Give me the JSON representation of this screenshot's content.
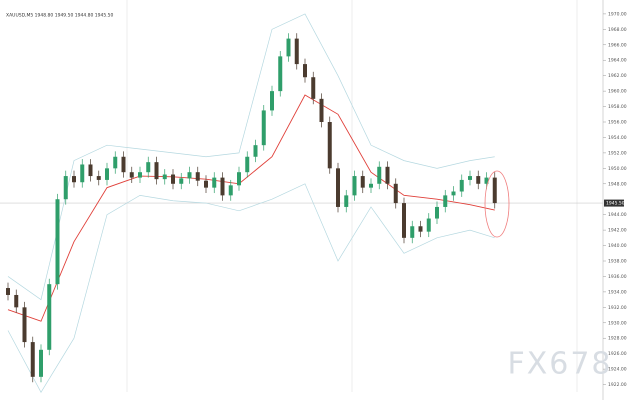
{
  "chart_data": {
    "type": "candlestick",
    "title": "XAUUSD,M5 1948.80 1949.50 1944.80 1945.50",
    "watermark": "FX678",
    "up_color": "#2f9e6a",
    "down_color": "#4b3b2f",
    "open": [
      1934.5,
      1933.6,
      1932.0,
      1927.5,
      1923.0,
      1926.5,
      1935.0,
      1946.0,
      1949.0,
      1948.2,
      1950.5,
      1949.0,
      1948.5,
      1950.0,
      1951.5,
      1949.5,
      1948.8,
      1949.5,
      1950.8,
      1948.6,
      1949.2,
      1948.0,
      1948.7,
      1949.5,
      1948.4,
      1947.5,
      1948.8,
      1946.5,
      1947.8,
      1949.5,
      1951.5,
      1953.0,
      1957.5,
      1960.0,
      1964.5,
      1966.8,
      1963.5,
      1961.8,
      1959.0,
      1956.0,
      1950.0,
      1945.0,
      1946.5,
      1949.0,
      1947.5,
      1948.0,
      1950.2,
      1948.0,
      1945.5,
      1941.0,
      1942.5,
      1941.8,
      1943.5,
      1945.0,
      1946.5,
      1947.0,
      1948.5,
      1949.0,
      1948.0,
      1948.8
    ],
    "high": [
      1935.2,
      1934.3,
      1932.7,
      1928.2,
      1927.2,
      1935.7,
      1946.7,
      1949.7,
      1949.7,
      1951.2,
      1951.2,
      1949.7,
      1950.7,
      1952.2,
      1952.2,
      1950.2,
      1950.2,
      1951.5,
      1951.5,
      1949.9,
      1949.9,
      1949.4,
      1950.2,
      1950.2,
      1949.1,
      1949.5,
      1949.5,
      1948.5,
      1950.2,
      1952.2,
      1953.7,
      1958.2,
      1960.7,
      1965.2,
      1967.5,
      1967.5,
      1964.2,
      1962.5,
      1959.7,
      1956.7,
      1950.7,
      1947.2,
      1949.7,
      1949.7,
      1948.7,
      1950.9,
      1950.9,
      1948.7,
      1946.2,
      1943.2,
      1943.2,
      1944.2,
      1945.7,
      1947.2,
      1947.7,
      1949.2,
      1949.7,
      1949.7,
      1949.5,
      1949.5
    ],
    "low": [
      1932.9,
      1931.3,
      1926.8,
      1922.3,
      1922.3,
      1925.8,
      1934.3,
      1945.3,
      1947.5,
      1947.5,
      1948.3,
      1947.8,
      1947.8,
      1949.3,
      1948.8,
      1948.1,
      1948.1,
      1948.8,
      1947.9,
      1947.9,
      1947.3,
      1947.3,
      1948.0,
      1947.7,
      1946.8,
      1946.8,
      1945.8,
      1945.8,
      1947.1,
      1948.8,
      1950.8,
      1952.3,
      1956.8,
      1959.3,
      1963.8,
      1962.8,
      1961.1,
      1958.3,
      1955.3,
      1949.3,
      1944.3,
      1944.3,
      1945.8,
      1946.8,
      1946.8,
      1947.3,
      1947.3,
      1944.8,
      1940.3,
      1940.3,
      1941.1,
      1941.1,
      1942.8,
      1944.3,
      1945.8,
      1946.3,
      1947.8,
      1947.3,
      1947.3,
      1944.8
    ],
    "close": [
      1933.6,
      1932.0,
      1927.5,
      1923.0,
      1926.5,
      1935.0,
      1946.0,
      1949.0,
      1948.2,
      1950.5,
      1949.0,
      1948.5,
      1950.0,
      1951.5,
      1949.5,
      1948.8,
      1949.5,
      1950.8,
      1948.6,
      1949.2,
      1948.0,
      1948.7,
      1949.5,
      1948.4,
      1947.5,
      1948.8,
      1946.5,
      1947.8,
      1949.5,
      1951.5,
      1953.0,
      1957.5,
      1960.0,
      1964.5,
      1966.8,
      1963.5,
      1961.8,
      1959.0,
      1956.0,
      1950.0,
      1945.0,
      1946.5,
      1949.0,
      1947.5,
      1948.0,
      1950.2,
      1948.0,
      1945.5,
      1941.0,
      1942.5,
      1941.8,
      1943.5,
      1945.0,
      1946.5,
      1947.0,
      1948.5,
      1949.0,
      1948.0,
      1948.8,
      1945.5
    ],
    "indicators": {
      "x": [
        0,
        4,
        8,
        12,
        16,
        20,
        24,
        28,
        32,
        36,
        40,
        44,
        48,
        52,
        56,
        59
      ],
      "series": [
        {
          "color": "#e0403a",
          "values": [
            1931.7,
            1930.2,
            1940.5,
            1947.5,
            1949.0,
            1948.9,
            1948.6,
            1948.0,
            1951.5,
            1959.5,
            1957.0,
            1949.5,
            1946.5,
            1946.0,
            1945.3,
            1944.6
          ]
        },
        {
          "color": "#b5d8e0",
          "values": [
            1936,
            1933,
            1951,
            1953,
            1952.5,
            1952,
            1951.5,
            1952,
            1968,
            1970,
            1962,
            1953,
            1951,
            1950,
            1951,
            1951.5
          ]
        },
        {
          "color": "#b5d8e0",
          "values": [
            1929,
            1921,
            1928,
            1944,
            1946.5,
            1945.8,
            1945.5,
            1944.5,
            1946,
            1948,
            1938,
            1945,
            1939,
            1941,
            1942,
            1941
          ]
        }
      ]
    },
    "last_price": {
      "value": 1945.5,
      "label": "1945.50"
    },
    "ylim": [
      1920,
      1971.8
    ],
    "yticks": [
      {
        "value": 1970,
        "label": "1970.00"
      },
      {
        "value": 1968,
        "label": "1968.00"
      },
      {
        "value": 1966,
        "label": "1966.00"
      },
      {
        "value": 1964,
        "label": "1964.00"
      },
      {
        "value": 1962,
        "label": "1962.00"
      },
      {
        "value": 1960,
        "label": "1960.00"
      },
      {
        "value": 1958,
        "label": "1958.00"
      },
      {
        "value": 1956,
        "label": "1956.00"
      },
      {
        "value": 1954,
        "label": "1954.00"
      },
      {
        "value": 1952,
        "label": "1952.00"
      },
      {
        "value": 1950,
        "label": "1950.00"
      },
      {
        "value": 1948,
        "label": "1948.00"
      },
      {
        "value": 1944,
        "label": "1944.00"
      },
      {
        "value": 1942,
        "label": "1942.00"
      },
      {
        "value": 1940,
        "label": "1940.00"
      },
      {
        "value": 1938,
        "label": "1938.00"
      },
      {
        "value": 1936,
        "label": "1936.00"
      },
      {
        "value": 1934,
        "label": "1934.00"
      },
      {
        "value": 1932,
        "label": "1932.00"
      },
      {
        "value": 1930,
        "label": "1930.00"
      },
      {
        "value": 1928,
        "label": "1928.00"
      },
      {
        "value": 1926,
        "label": "1926.00"
      },
      {
        "value": 1924,
        "label": "1924.00"
      },
      {
        "value": 1922,
        "label": "1922.00"
      }
    ]
  }
}
